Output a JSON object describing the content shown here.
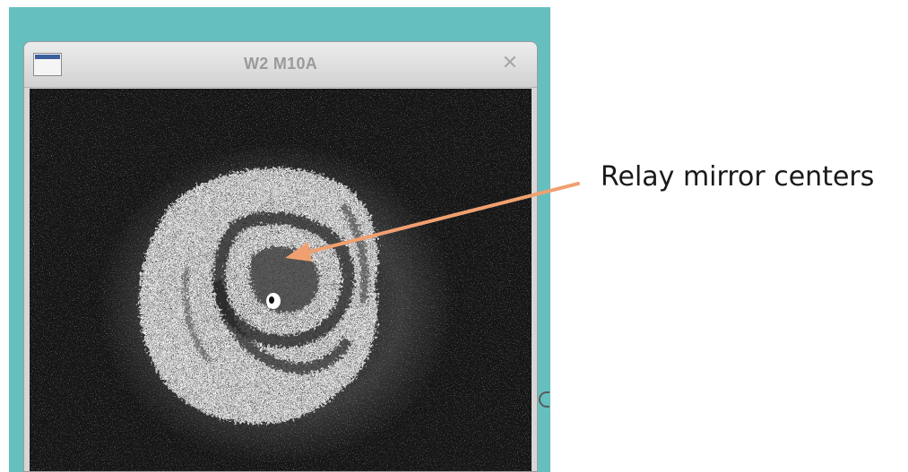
{
  "window": {
    "title": "W2 M10A",
    "close_glyph": "✕",
    "icon": "window-app-icon"
  },
  "image": {
    "description_icon": "beam-spot-image",
    "background_color": "#151515",
    "spot_color": "#ffffff"
  },
  "annotation": {
    "label": "Relay mirror centers",
    "arrow_color": "#f0a070"
  },
  "desktop": {
    "background_color": "#66bfbf"
  }
}
